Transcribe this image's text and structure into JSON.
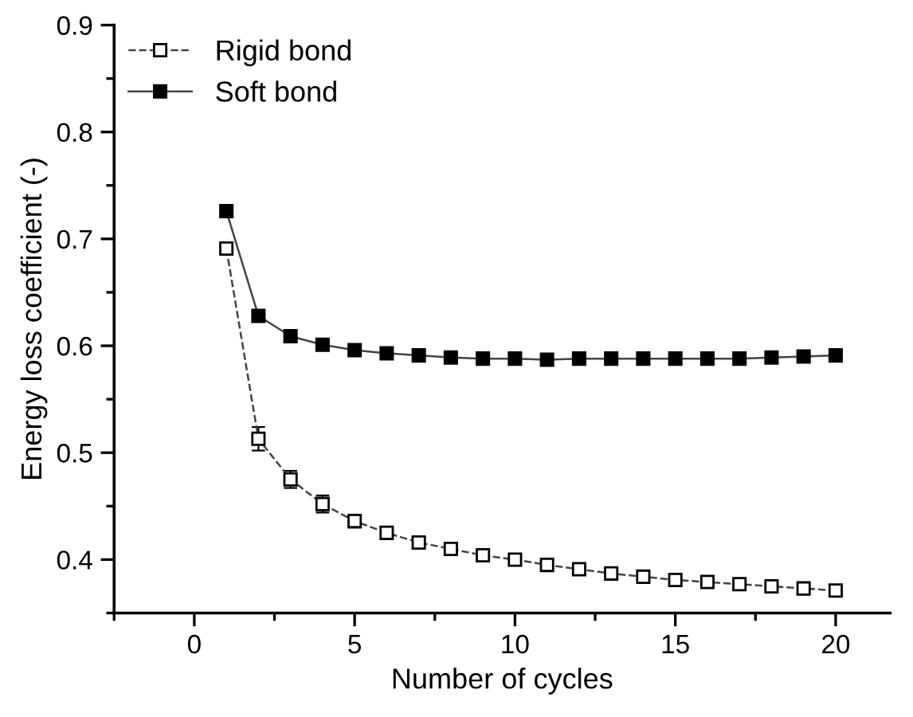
{
  "chart_data": {
    "type": "line",
    "xlabel": "Number of cycles",
    "ylabel": "Energy loss coefficient (-)",
    "x": [
      1,
      2,
      3,
      4,
      5,
      6,
      7,
      8,
      9,
      10,
      11,
      12,
      13,
      14,
      15,
      16,
      17,
      18,
      19,
      20
    ],
    "xlim": [
      -2.5,
      21.7
    ],
    "xticks": [
      0,
      5,
      10,
      15,
      20
    ],
    "ylim": [
      0.35,
      0.9
    ],
    "yticks": [
      0.4,
      0.5,
      0.6,
      0.7,
      0.8,
      0.9
    ],
    "grid": false,
    "legend": "top left",
    "marker": "square",
    "series": [
      {
        "name": "Rigid bond",
        "color": "#000000",
        "line_style": "dashed",
        "values": [
          0.691,
          0.513,
          0.475,
          0.452,
          0.436,
          0.425,
          0.416,
          0.41,
          0.404,
          0.4,
          0.395,
          0.391,
          0.387,
          0.384,
          0.381,
          0.379,
          0.377,
          0.375,
          0.373,
          0.371
        ],
        "errors": [
          null,
          0.011,
          0.008,
          0.008,
          0.006,
          0.005,
          0.005,
          0.005,
          0.005,
          0.005,
          null,
          null,
          null,
          null,
          null,
          null,
          null,
          null,
          null,
          null
        ]
      },
      {
        "name": "Soft bond",
        "color": "#000000",
        "line_style": "solid",
        "values": [
          0.726,
          0.628,
          0.609,
          0.601,
          0.596,
          0.593,
          0.591,
          0.589,
          0.588,
          0.588,
          0.587,
          0.588,
          0.588,
          0.588,
          0.588,
          0.588,
          0.588,
          0.589,
          0.59,
          0.591
        ]
      }
    ]
  }
}
